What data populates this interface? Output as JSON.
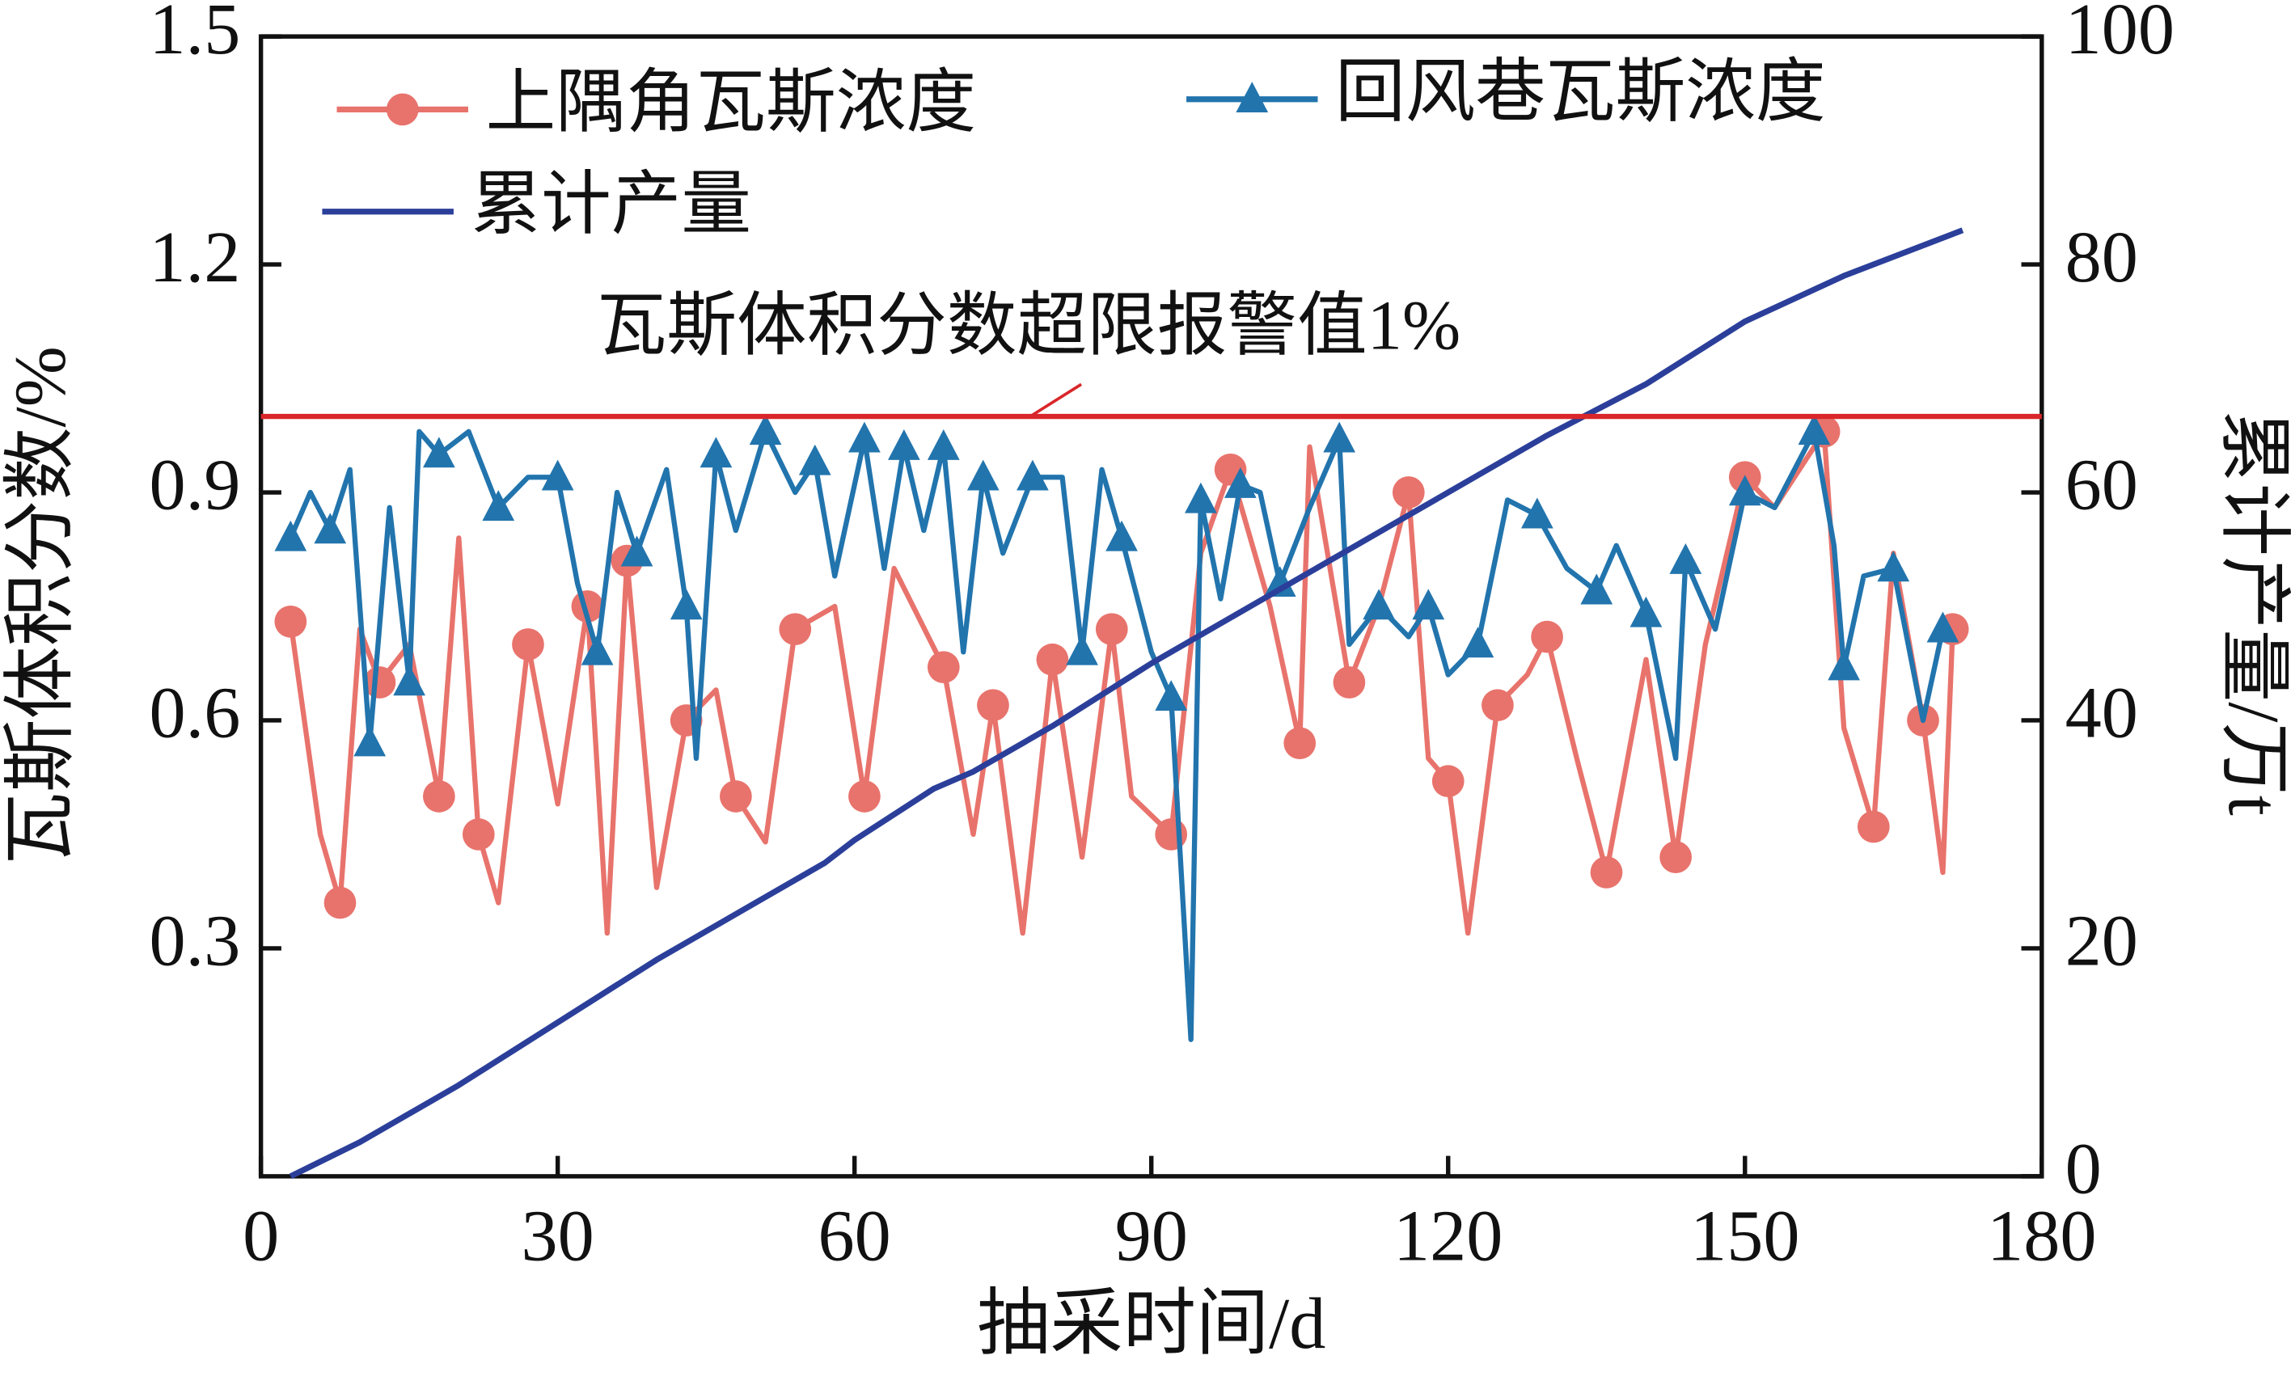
{
  "chart_data": {
    "type": "line",
    "x_label": "抽采时间/d",
    "y_label": "瓦斯体积分数/%",
    "y2_label": "累计产量/万t",
    "xlim": [
      0,
      180
    ],
    "xticks": [
      0,
      30,
      60,
      90,
      120,
      150,
      180
    ],
    "ylim": [
      0,
      1.5
    ],
    "yticks": [
      0.3,
      0.6,
      0.9,
      1.2,
      1.5
    ],
    "y2lim": [
      0,
      100
    ],
    "y2ticks": [
      0,
      20,
      40,
      60,
      80,
      100
    ],
    "reference_line": {
      "value": 1,
      "label": "瓦斯体积分数超限报警值1%",
      "color": "#d9262a"
    },
    "series": [
      {
        "name": "上隅角瓦斯浓度",
        "color": "#e8736c",
        "marker": "circle",
        "x": [
          3,
          6,
          8,
          10,
          12,
          15,
          18,
          20,
          22,
          24,
          27,
          30,
          33,
          35,
          37,
          40,
          43,
          46,
          48,
          51,
          54,
          58,
          61,
          64,
          69,
          72,
          74,
          77,
          80,
          83,
          86,
          88,
          92,
          95,
          98,
          102,
          105,
          106,
          110,
          113,
          116,
          118,
          120,
          122,
          125,
          128,
          130,
          133,
          136,
          140,
          143,
          146,
          150,
          153,
          158,
          160,
          163,
          165,
          168,
          170,
          171
        ],
        "values": [
          0.73,
          0.45,
          0.36,
          0.72,
          0.65,
          0.7,
          0.5,
          0.84,
          0.45,
          0.36,
          0.7,
          0.49,
          0.75,
          0.32,
          0.81,
          0.38,
          0.6,
          0.64,
          0.5,
          0.44,
          0.72,
          0.75,
          0.5,
          0.8,
          0.67,
          0.45,
          0.62,
          0.32,
          0.68,
          0.42,
          0.72,
          0.5,
          0.45,
          0.82,
          0.93,
          0.75,
          0.57,
          0.96,
          0.65,
          0.75,
          0.9,
          0.55,
          0.52,
          0.32,
          0.62,
          0.66,
          0.71,
          0.55,
          0.4,
          0.68,
          0.42,
          0.7,
          0.92,
          0.88,
          0.98,
          0.59,
          0.46,
          0.82,
          0.6,
          0.4,
          0.72
        ]
      },
      {
        "name": "回风巷瓦斯浓度",
        "color": "#2274ad",
        "marker": "triangle",
        "x": [
          3,
          5,
          7,
          9,
          11,
          13,
          15,
          16,
          18,
          21,
          24,
          27,
          30,
          32,
          34,
          36,
          38,
          41,
          43,
          44,
          46,
          48,
          51,
          54,
          56,
          58,
          61,
          63,
          65,
          67,
          69,
          71,
          73,
          75,
          78,
          81,
          83,
          85,
          87,
          90,
          92,
          94,
          95,
          97,
          99,
          101,
          103,
          106,
          109,
          110,
          113,
          116,
          118,
          120,
          123,
          126,
          129,
          132,
          135,
          137,
          140,
          143,
          144,
          147,
          150,
          153,
          157,
          159,
          160,
          162,
          165,
          168,
          170
        ],
        "values": [
          0.84,
          0.9,
          0.85,
          0.93,
          0.57,
          0.88,
          0.65,
          0.98,
          0.95,
          0.98,
          0.88,
          0.92,
          0.92,
          0.78,
          0.69,
          0.9,
          0.82,
          0.93,
          0.75,
          0.55,
          0.95,
          0.85,
          0.98,
          0.9,
          0.94,
          0.79,
          0.97,
          0.8,
          0.96,
          0.85,
          0.96,
          0.69,
          0.92,
          0.82,
          0.92,
          0.92,
          0.69,
          0.93,
          0.84,
          0.69,
          0.63,
          0.18,
          0.89,
          0.76,
          0.91,
          0.9,
          0.78,
          0.88,
          0.97,
          0.7,
          0.75,
          0.71,
          0.75,
          0.66,
          0.7,
          0.89,
          0.87,
          0.8,
          0.77,
          0.83,
          0.74,
          0.55,
          0.81,
          0.72,
          0.9,
          0.88,
          0.98,
          0.83,
          0.67,
          0.79,
          0.8,
          0.6,
          0.72
        ]
      },
      {
        "name": "累计产量",
        "color": "#2b3f9a",
        "marker": null,
        "axis": "y2",
        "x": [
          3,
          10,
          20,
          30,
          40,
          50,
          57,
          60,
          68,
          72,
          80,
          90,
          100,
          110,
          120,
          130,
          140,
          150,
          160,
          172
        ],
        "values": [
          0,
          3,
          8,
          13.5,
          19,
          24,
          27.5,
          29.5,
          34,
          35.5,
          39.5,
          45,
          50,
          55,
          60,
          65,
          69.5,
          75,
          79,
          83
        ]
      }
    ]
  }
}
